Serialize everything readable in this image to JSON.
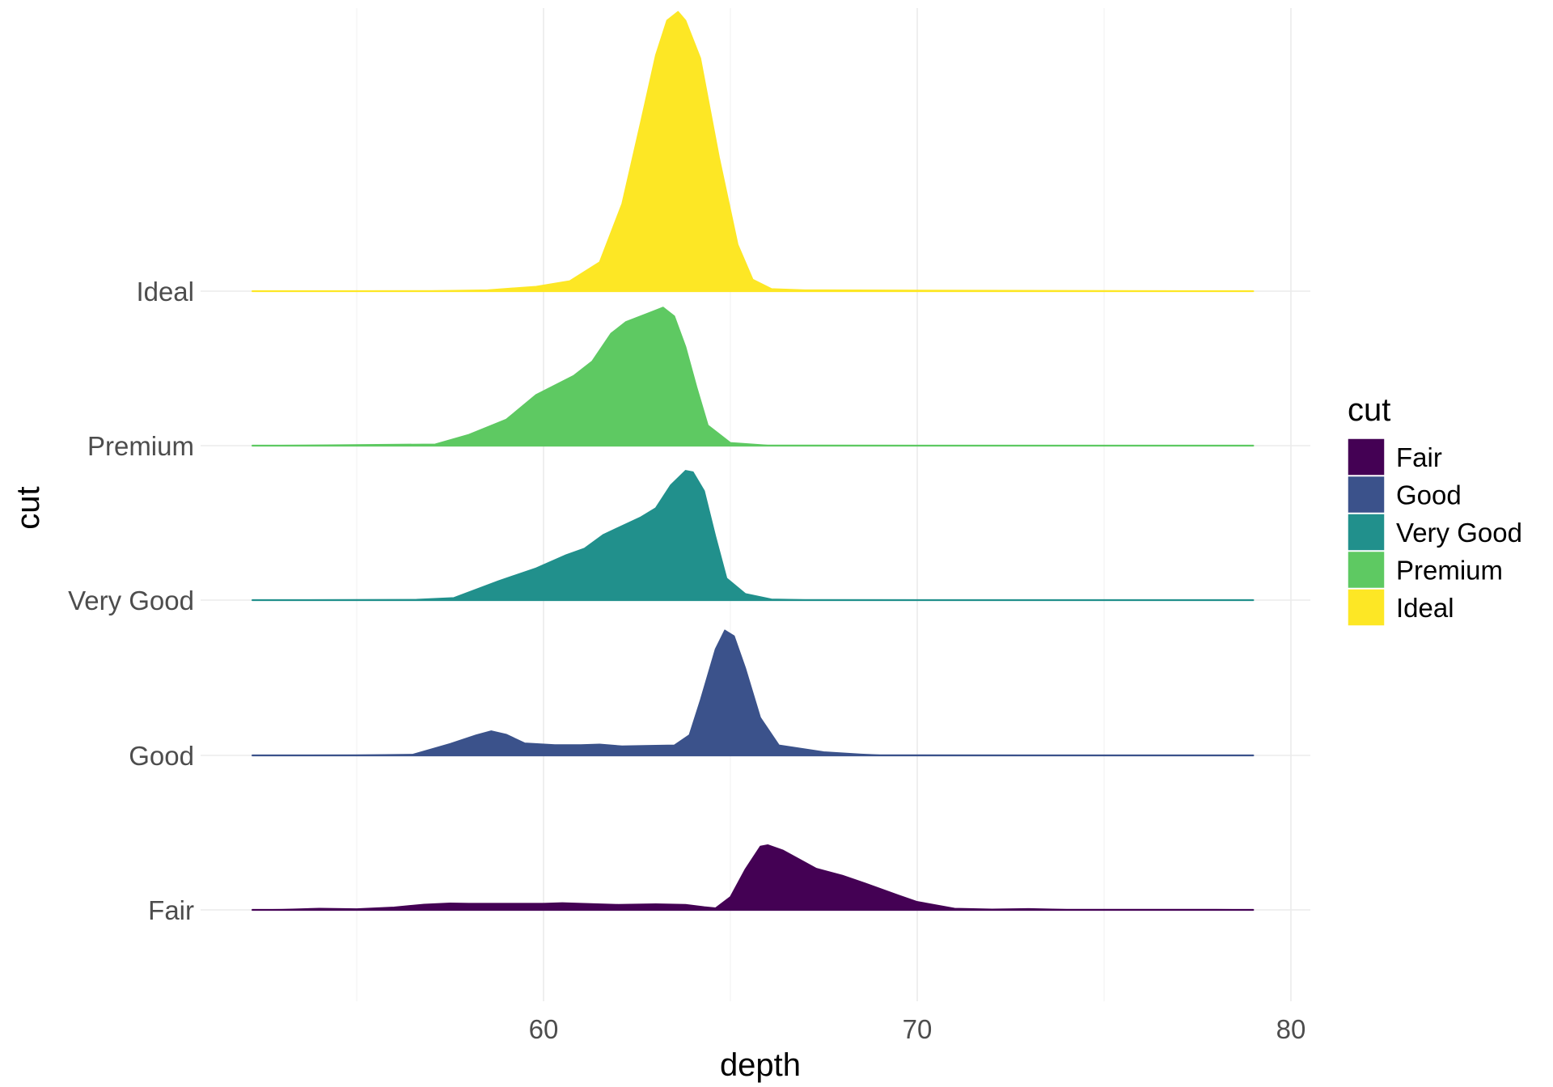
{
  "chart_data": {
    "type": "ridgeline",
    "xlabel": "depth",
    "ylabel": "cut",
    "xlim": [
      43,
      79
    ],
    "x_ticks": [
      60,
      70,
      80
    ],
    "x_tick_labels": [
      "60",
      "70",
      "80"
    ],
    "x_minor_gridlines": [
      55,
      65,
      75
    ],
    "grid": true,
    "legend": {
      "title": "cut",
      "position": "right"
    },
    "categories": [
      "Fair",
      "Good",
      "Very Good",
      "Premium",
      "Ideal"
    ],
    "series": [
      {
        "name": "Fair",
        "color": "#440154",
        "density": [
          [
            52.2,
            0
          ],
          [
            53,
            0.001
          ],
          [
            54,
            0.005
          ],
          [
            55,
            0.003
          ],
          [
            56,
            0.009
          ],
          [
            56.8,
            0.019
          ],
          [
            57.5,
            0.023
          ],
          [
            58,
            0.022
          ],
          [
            59,
            0.022
          ],
          [
            60,
            0.022
          ],
          [
            60.5,
            0.024
          ],
          [
            61,
            0.022
          ],
          [
            62,
            0.018
          ],
          [
            63,
            0.02
          ],
          [
            63.8,
            0.018
          ],
          [
            64.3,
            0.01
          ],
          [
            64.6,
            0.006
          ],
          [
            65,
            0.045
          ],
          [
            65.4,
            0.14
          ],
          [
            65.8,
            0.218
          ],
          [
            66,
            0.223
          ],
          [
            66.4,
            0.205
          ],
          [
            66.9,
            0.17
          ],
          [
            67.3,
            0.142
          ],
          [
            68,
            0.118
          ],
          [
            68.6,
            0.092
          ],
          [
            69.5,
            0.05
          ],
          [
            70,
            0.028
          ],
          [
            71,
            0.005
          ],
          [
            72,
            0.002
          ],
          [
            73,
            0.004
          ],
          [
            74,
            0.001
          ],
          [
            78,
            0.001
          ],
          [
            79,
            0
          ]
        ]
      },
      {
        "name": "Good",
        "color": "#3b528b",
        "density": [
          [
            52.2,
            0
          ],
          [
            55,
            0.001
          ],
          [
            56.5,
            0.003
          ],
          [
            57.5,
            0.04
          ],
          [
            58.2,
            0.07
          ],
          [
            58.6,
            0.084
          ],
          [
            59,
            0.072
          ],
          [
            59.5,
            0.042
          ],
          [
            60.3,
            0.036
          ],
          [
            61,
            0.036
          ],
          [
            61.5,
            0.038
          ],
          [
            62.1,
            0.032
          ],
          [
            63,
            0.034
          ],
          [
            63.5,
            0.035
          ],
          [
            63.9,
            0.07
          ],
          [
            64.2,
            0.19
          ],
          [
            64.6,
            0.365
          ],
          [
            64.85,
            0.43
          ],
          [
            65.1,
            0.41
          ],
          [
            65.4,
            0.3
          ],
          [
            65.8,
            0.13
          ],
          [
            66.3,
            0.035
          ],
          [
            67.5,
            0.012
          ],
          [
            68.5,
            0.004
          ],
          [
            69,
            0.001
          ],
          [
            79,
            0
          ]
        ]
      },
      {
        "name": "Very Good",
        "color": "#21908c",
        "density": [
          [
            52.2,
            0
          ],
          [
            56.6,
            0.002
          ],
          [
            57.6,
            0.008
          ],
          [
            58.8,
            0.066
          ],
          [
            59.8,
            0.11
          ],
          [
            60.6,
            0.155
          ],
          [
            61.1,
            0.178
          ],
          [
            61.6,
            0.225
          ],
          [
            62.6,
            0.285
          ],
          [
            63,
            0.316
          ],
          [
            63.4,
            0.395
          ],
          [
            63.8,
            0.445
          ],
          [
            64,
            0.44
          ],
          [
            64.3,
            0.375
          ],
          [
            64.6,
            0.22
          ],
          [
            64.9,
            0.075
          ],
          [
            65.4,
            0.022
          ],
          [
            66.1,
            0.003
          ],
          [
            67,
            0.001
          ],
          [
            79,
            0
          ]
        ]
      },
      {
        "name": "Premium",
        "color": "#5ec962",
        "density": [
          [
            52.2,
            0
          ],
          [
            57.1,
            0.005
          ],
          [
            58,
            0.038
          ],
          [
            59,
            0.09
          ],
          [
            59.8,
            0.175
          ],
          [
            60.8,
            0.24
          ],
          [
            61.3,
            0.29
          ],
          [
            61.8,
            0.385
          ],
          [
            62.2,
            0.425
          ],
          [
            62.8,
            0.455
          ],
          [
            63.2,
            0.475
          ],
          [
            63.5,
            0.445
          ],
          [
            63.8,
            0.34
          ],
          [
            64.1,
            0.2
          ],
          [
            64.4,
            0.07
          ],
          [
            65,
            0.01
          ],
          [
            66,
            0.001
          ],
          [
            79,
            0
          ]
        ]
      },
      {
        "name": "Ideal",
        "color": "#fde725",
        "density": [
          [
            52.2,
            0
          ],
          [
            57,
            0.001
          ],
          [
            58.5,
            0.004
          ],
          [
            59.8,
            0.016
          ],
          [
            60.7,
            0.035
          ],
          [
            61.5,
            0.1
          ],
          [
            62.1,
            0.3
          ],
          [
            62.6,
            0.58
          ],
          [
            63,
            0.81
          ],
          [
            63.3,
            0.93
          ],
          [
            63.6,
            0.96
          ],
          [
            63.8,
            0.93
          ],
          [
            64.2,
            0.8
          ],
          [
            64.7,
            0.46
          ],
          [
            65.2,
            0.16
          ],
          [
            65.6,
            0.04
          ],
          [
            66.1,
            0.008
          ],
          [
            67,
            0.004
          ],
          [
            79,
            0
          ]
        ]
      }
    ]
  }
}
